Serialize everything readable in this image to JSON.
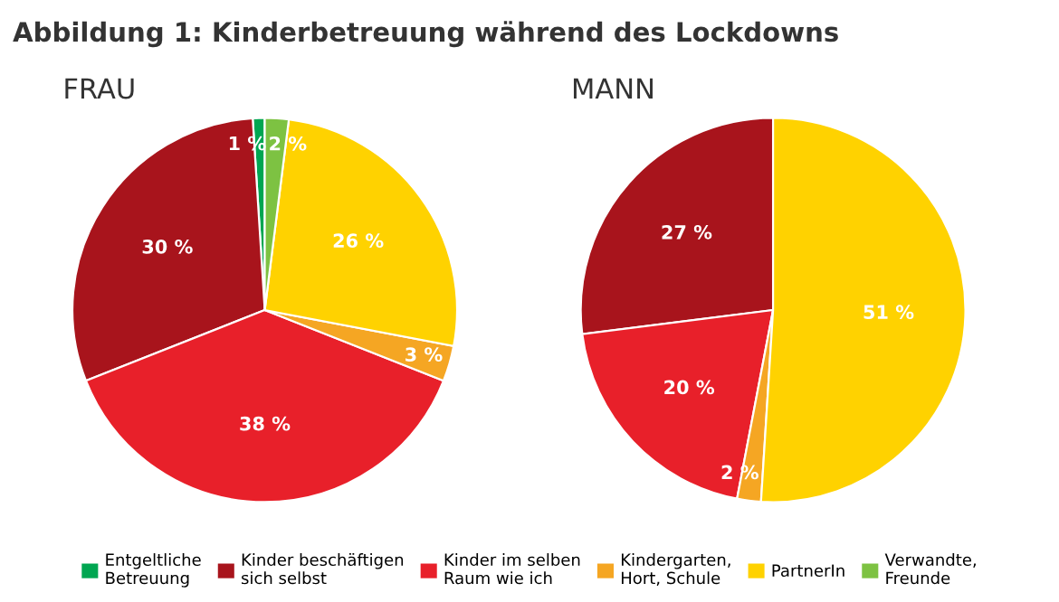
{
  "chart_data": [
    {
      "type": "pie",
      "title": "Abbildung 1: Kinderbetreuung während des Lockdowns",
      "subtitle": "FRAU",
      "legend": "bottom",
      "categories": [
        "Entgeltliche\nBetreuung",
        "Kinder beschäftigen\nsich selbst",
        "Kinder im selben\nRaum wie ich",
        "Kindergarten,\nHort, Schule",
        "PartnerIn",
        "Verwandte,\nFreunde"
      ],
      "values": [
        1,
        30,
        38,
        3,
        26,
        2
      ],
      "value_labels": [
        "1 %",
        "30 %",
        "38 %",
        "3 %",
        "26 %",
        "2 %"
      ],
      "colors": [
        "#00a651",
        "#a8141c",
        "#e8202a",
        "#f5a623",
        "#ffd200",
        "#7dc242"
      ]
    },
    {
      "type": "pie",
      "subtitle": "MANN",
      "categories": [
        null,
        null,
        null,
        null
      ],
      "values": [
        27,
        20,
        2,
        51
      ],
      "value_labels": [
        "27 %",
        "20 %",
        "2 %",
        "51 %"
      ],
      "colors": [
        "#a8141c",
        "#e8202a",
        "#f5a623",
        "#ffd200"
      ]
    }
  ]
}
